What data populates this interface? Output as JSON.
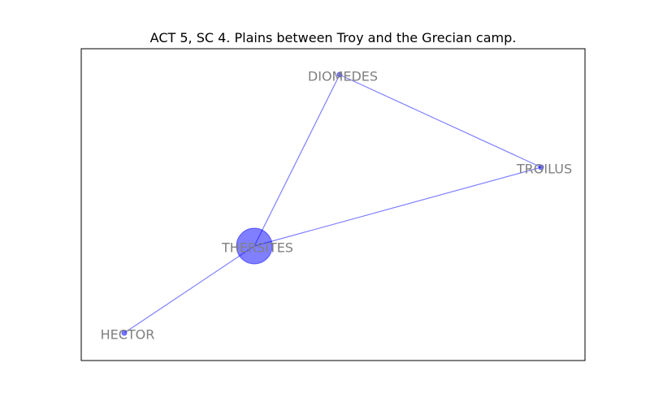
{
  "title": "ACT 5, SC 4. Plains between Troy and the Grecian camp.",
  "colors": {
    "node_fill": "#0000ff",
    "edge": "#0000ff",
    "label": "#808080",
    "frame": "#000000"
  },
  "nodes": [
    {
      "id": "DIOMEDES",
      "label": "DIOMEDES",
      "weight": 1
    },
    {
      "id": "TROILUS",
      "label": "TROILUS",
      "weight": 1
    },
    {
      "id": "THERSITES",
      "label": "THERSITES",
      "weight": 10
    },
    {
      "id": "HECTOR",
      "label": "HECTOR",
      "weight": 1
    }
  ],
  "edges": [
    {
      "source": "THERSITES",
      "target": "DIOMEDES"
    },
    {
      "source": "THERSITES",
      "target": "TROILUS"
    },
    {
      "source": "THERSITES",
      "target": "HECTOR"
    },
    {
      "source": "DIOMEDES",
      "target": "TROILUS"
    }
  ]
}
